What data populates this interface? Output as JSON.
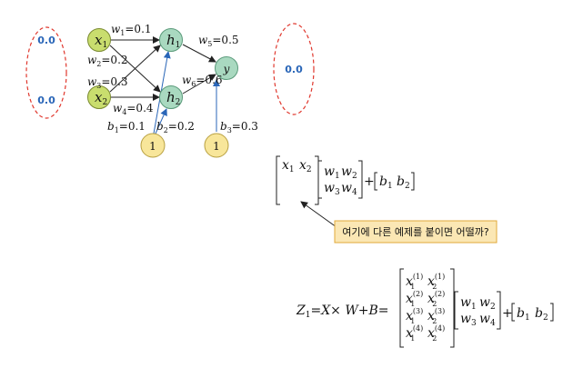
{
  "left_layer": {
    "values": [
      "0.0",
      "0.0"
    ]
  },
  "right_layer": {
    "values": [
      "0.0"
    ]
  },
  "nodes": {
    "x1": {
      "base": "x",
      "sub": "1",
      "color": "#c9dd6e"
    },
    "x2": {
      "base": "x",
      "sub": "2",
      "color": "#c9dd6e"
    },
    "h1": {
      "base": "h",
      "sub": "1",
      "color": "#a9d9c0"
    },
    "h2": {
      "base": "h",
      "sub": "2",
      "color": "#a9d9c0"
    },
    "y": {
      "base": "y",
      "sub": "",
      "color": "#a9d9c0"
    },
    "bias1": {
      "label": "1",
      "color": "#f8e69a"
    },
    "bias2": {
      "label": "1",
      "color": "#f8e69a"
    }
  },
  "weights": {
    "w1": {
      "name": "w",
      "sub": "1",
      "value": "=0.1"
    },
    "w2": {
      "name": "w",
      "sub": "2",
      "value": "=0.2"
    },
    "w3": {
      "name": "w",
      "sub": "3",
      "value": "=0.3"
    },
    "w4": {
      "name": "w",
      "sub": "4",
      "value": "=0.4"
    },
    "w5": {
      "name": "w",
      "sub": "5",
      "value": "=0.5"
    },
    "w6": {
      "name": "w",
      "sub": "6",
      "value": "=0.6"
    },
    "b1": {
      "name": "b",
      "sub": "1",
      "value": "=0.1"
    },
    "b2": {
      "name": "b",
      "sub": "2",
      "value": "=0.2"
    },
    "b3": {
      "name": "b",
      "sub": "3",
      "value": "=0.3"
    }
  },
  "equation1": {
    "x": [
      {
        "base": "x",
        "sub": "1"
      },
      {
        "base": "x",
        "sub": "2"
      }
    ],
    "w": [
      {
        "base": "w",
        "sub": "1"
      },
      {
        "base": "w",
        "sub": "2"
      },
      {
        "base": "w",
        "sub": "3"
      },
      {
        "base": "w",
        "sub": "4"
      }
    ],
    "plus": "+",
    "b": [
      {
        "base": "b",
        "sub": "1"
      },
      {
        "base": "b",
        "sub": "2"
      }
    ]
  },
  "callout": {
    "text": "여기에 다른 예제를 붙이면 어떨까?"
  },
  "equation2": {
    "lhs": "Z",
    "lhs_sub": "1",
    "rhs": "=X× W+B=",
    "rows": [
      {
        "a": "x",
        "a_sub": "1",
        "a_sup": "(1)",
        "b": "x",
        "b_sub": "2",
        "b_sup": "(1)"
      },
      {
        "a": "x",
        "a_sub": "1",
        "a_sup": "(2)",
        "b": "x",
        "b_sub": "2",
        "b_sup": "(2)"
      },
      {
        "a": "x",
        "a_sub": "1",
        "a_sup": "(3)",
        "b": "x",
        "b_sub": "2",
        "b_sup": "(3)"
      },
      {
        "a": "x",
        "a_sub": "1",
        "a_sup": "(4)",
        "b": "x",
        "b_sub": "2",
        "b_sup": "(4)"
      }
    ],
    "w": [
      {
        "base": "w",
        "sub": "1"
      },
      {
        "base": "w",
        "sub": "2"
      },
      {
        "base": "w",
        "sub": "3"
      },
      {
        "base": "w",
        "sub": "4"
      }
    ],
    "plus": "+",
    "b": [
      {
        "base": "b",
        "sub": "1"
      },
      {
        "base": "b",
        "sub": "2"
      }
    ]
  },
  "colors": {
    "bias_edge": "#2a66b8",
    "ellipse": "#e0382e",
    "callout_fill": "#fbe7b4",
    "callout_border": "#e0a83a"
  }
}
